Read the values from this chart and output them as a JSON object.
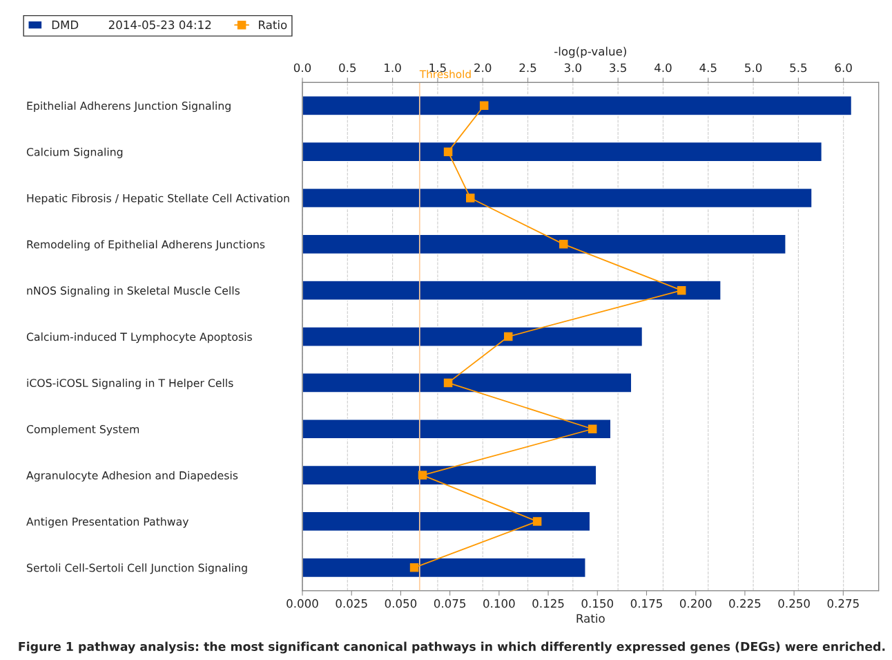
{
  "chart_data": {
    "type": "bar",
    "orientation": "horizontal",
    "categories": [
      "Epithelial Adherens Junction Signaling",
      "Calcium Signaling",
      "Hepatic Fibrosis / Hepatic Stellate Cell Activation",
      "Remodeling of Epithelial Adherens Junctions",
      "nNOS Signaling in Skeletal Muscle Cells",
      "Calcium-induced T Lymphocyte Apoptosis",
      "iCOS-iCOSL Signaling in T Helper Cells",
      "Complement System",
      "Agranulocyte Adhesion and Diapedesis",
      "Antigen Presentation Pathway",
      "Sertoli Cell-Sertoli Cell Junction Signaling"
    ],
    "series": [
      {
        "name": "DMD        2014-05-23 04:12",
        "axis": "x2",
        "color": "#003399",
        "values": [
          6.09,
          5.76,
          5.65,
          5.36,
          4.64,
          3.77,
          3.65,
          3.42,
          3.26,
          3.19,
          3.14
        ]
      },
      {
        "name": "Ratio",
        "type": "line",
        "color": "#ff9900",
        "marker": "square",
        "line_style": "solid",
        "values": [
          0.0924,
          0.0741,
          0.0854,
          0.1328,
          0.1928,
          0.1047,
          0.0741,
          0.1475,
          0.0611,
          0.1194,
          0.0569
        ]
      }
    ],
    "xlabel": "Ratio",
    "xlim": [
      0,
      0.293
    ],
    "xticks": [
      {
        "value": 0,
        "label": "0.000"
      },
      0.025,
      {
        "value": 0.05,
        "label": "0.050"
      },
      0.075,
      {
        "value": 0.1,
        "label": "0.100"
      },
      0.125,
      {
        "value": 0.15,
        "label": "0.150"
      },
      0.175,
      {
        "value": 0.2,
        "label": "0.200"
      },
      0.225,
      {
        "value": 0.25,
        "label": "0.250"
      },
      0.275
    ],
    "x2label": "-log(p-value)",
    "x2lim": [
      0,
      6.39
    ],
    "x2ticks": [
      {
        "value": 0,
        "label": "0.0"
      },
      0.5,
      {
        "value": 1,
        "label": "1.0"
      },
      1.5,
      {
        "value": 2,
        "label": "2.0"
      },
      2.5,
      {
        "value": 3,
        "label": "3.0"
      },
      3.5,
      {
        "value": 4,
        "label": "4.0"
      },
      4.5,
      {
        "value": 5,
        "label": "5.0"
      },
      5.5,
      {
        "value": 6,
        "label": "6.0"
      }
    ],
    "ref_lines": [
      {
        "axis": "x2",
        "value": 1.3,
        "label": "Threshold",
        "color": "#ffcc99"
      }
    ],
    "grid": "x2",
    "legend": "top left",
    "annotations": [
      "Figure 1 pathway analysis: the most significant canonical pathways in which differently expressed genes (DEGs) were enriched."
    ]
  }
}
